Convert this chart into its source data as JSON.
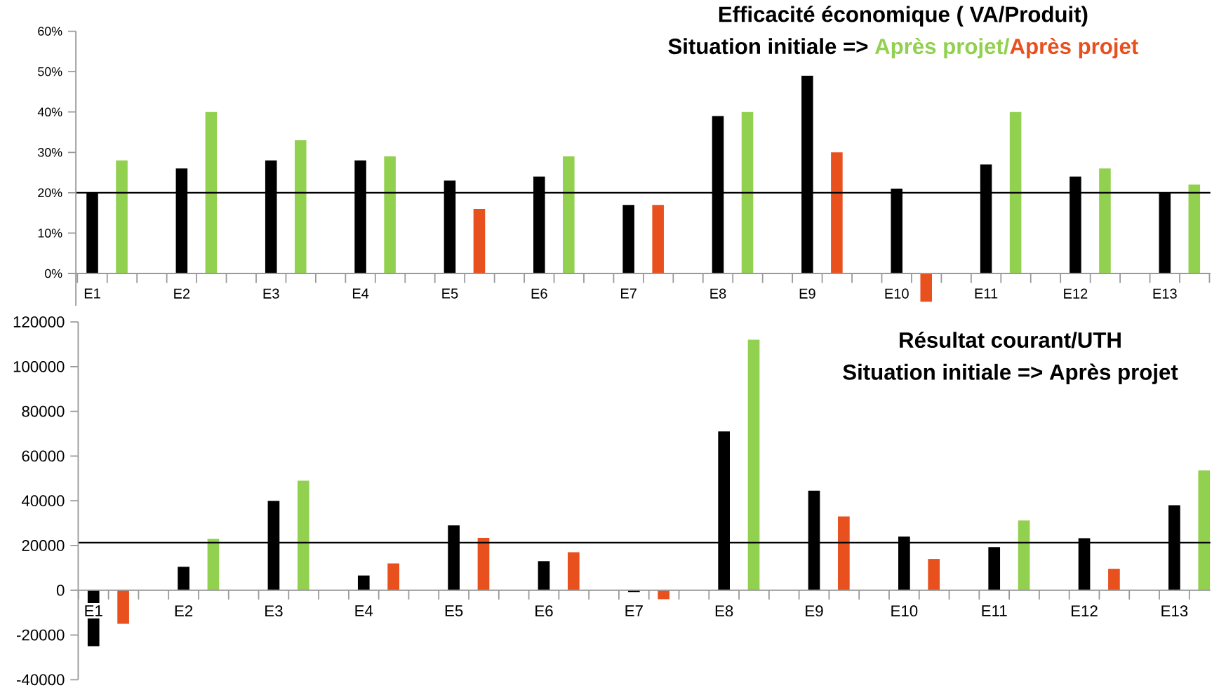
{
  "chart_data": [
    {
      "type": "bar",
      "title": "Efficacité économique ( VA/Produit)",
      "subtitle": "Situation initiale =>",
      "annotations": [
        "Après projet/",
        "Après projet"
      ],
      "categories": [
        "E1",
        "E2",
        "E3",
        "E4",
        "E5",
        "E6",
        "E7",
        "E8",
        "E9",
        "E10",
        "E11",
        "E12",
        "E13"
      ],
      "series": [
        {
          "color": "#000000",
          "values": [
            20,
            26,
            28,
            28,
            23,
            24,
            17,
            39,
            49,
            21,
            27,
            24,
            20
          ]
        },
        {
          "colors": [
            "#92d050",
            "#92d050",
            "#92d050",
            "#92d050",
            "#e8501e",
            "#92d050",
            "#e8501e",
            "#92d050",
            "#e8501e",
            "#e8501e",
            "#92d050",
            "#92d050",
            "#92d050"
          ],
          "values": [
            28,
            40,
            33,
            29,
            16,
            29,
            17,
            40,
            30,
            -7,
            40,
            26,
            22
          ]
        }
      ],
      "ylim": [
        -8,
        60
      ],
      "yticks": [
        {
          "value": 0,
          "label": "0%"
        },
        {
          "value": 10,
          "label": "10%"
        },
        {
          "value": 20,
          "label": "20%"
        },
        {
          "value": 30,
          "label": "30%"
        },
        {
          "value": 40,
          "label": "40%"
        },
        {
          "value": 50,
          "label": "50%"
        },
        {
          "value": 60,
          "label": "60%"
        }
      ],
      "ref_lines": [
        {
          "axis": "y",
          "value": 20,
          "color": "#000000"
        }
      ]
    },
    {
      "type": "bar",
      "title": "Résultat courant/UTH",
      "subtitle": "Situation initiale => Après projet",
      "categories": [
        "E1",
        "E2",
        "E3",
        "E4",
        "E5",
        "E6",
        "E7",
        "E8",
        "E9",
        "E10",
        "E11",
        "E12",
        "E13"
      ],
      "series": [
        {
          "color": "#000000",
          "values": [
            -25000,
            10500,
            40000,
            6600,
            29000,
            13000,
            -800,
            71000,
            44500,
            24000,
            19300,
            23300,
            38000
          ]
        },
        {
          "colors": [
            "#e8501e",
            "#92d050",
            "#92d050",
            "#e8501e",
            "#e8501e",
            "#e8501e",
            "#e8501e",
            "#92d050",
            "#e8501e",
            "#e8501e",
            "#92d050",
            "#e8501e",
            "#92d050"
          ],
          "values": [
            -15000,
            23000,
            49000,
            12000,
            23400,
            17000,
            -4000,
            112000,
            33000,
            14000,
            31200,
            9600,
            53600
          ]
        }
      ],
      "ylim": [
        -40000,
        120000
      ],
      "yticks": [
        -40000,
        -20000,
        0,
        20000,
        40000,
        60000,
        80000,
        100000,
        120000
      ],
      "ref_lines": [
        {
          "axis": "y",
          "value": 21300,
          "color": "#000000"
        }
      ]
    }
  ]
}
